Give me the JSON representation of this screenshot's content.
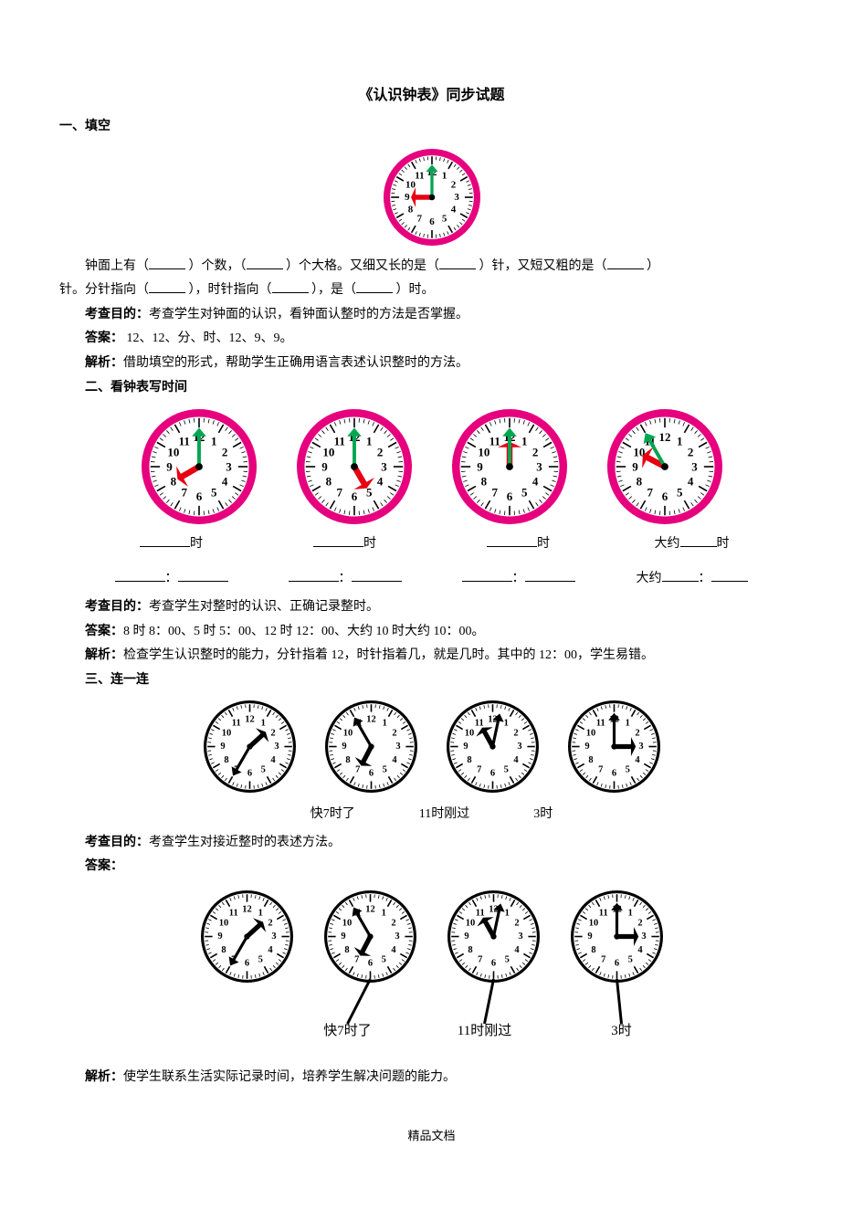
{
  "title": "《认识钟表》同步试题",
  "section1": {
    "heading": "一、填空",
    "clock": {
      "type": "analog-clock",
      "size": 110,
      "rim_color": "#e6007e",
      "face_color": "#ffffff",
      "tick_color": "#000000",
      "hour_hand_color": "#e60012",
      "minute_hand_color": "#00a651",
      "hour": 9,
      "minute": 0,
      "number_fontsize": 10
    },
    "fill_text_a": "钟面上有（",
    "fill_text_b": "）个数，（",
    "fill_text_c": "）个大格。又细又长的是（",
    "fill_text_d": "）针，又短又粗的是（",
    "fill_text_e": "）",
    "fill_line2a": "针。分针指向（",
    "fill_line2b": "），时针指向（",
    "fill_line2c": "），是（",
    "fill_line2d": "）时。",
    "purpose_label": "考查目的：",
    "purpose_text": "考查学生对钟面的认识，看钟面认整时的方法是否掌握。",
    "answer_label": "答案：",
    "answer_text": " 12、12、分、时、12、9、9。",
    "analysis_label": "解析：",
    "analysis_text": "借助填空的形式，帮助学生正确用语言表述认识整时的方法。"
  },
  "section2": {
    "heading": "二、看钟表写时间",
    "clocks": [
      {
        "hour": 8,
        "minute": 0,
        "rim_color": "#e6007e",
        "hour_hand_color": "#e60012",
        "minute_hand_color": "#00a651"
      },
      {
        "hour": 5,
        "minute": 0,
        "rim_color": "#e6007e",
        "hour_hand_color": "#e60012",
        "minute_hand_color": "#00a651"
      },
      {
        "hour": 12,
        "minute": 0,
        "rim_color": "#e6007e",
        "hour_hand_color": "#e60012",
        "minute_hand_color": "#00a651"
      },
      {
        "hour": 9,
        "minute": 55,
        "rim_color": "#e6007e",
        "hour_hand_color": "#e60012",
        "minute_hand_color": "#00a651"
      }
    ],
    "clock_size": 130,
    "row1_suffix": "时",
    "row1_prefix_last": "大约",
    "row2_colon": "：",
    "row2_prefix_last": "大约",
    "purpose_label": "考查目的：",
    "purpose_text": "考查学生对整时的认识、正确记录整时。",
    "answer_label": "答案：",
    "answer_text": "8 时 8：00、5 时 5：00、12 时 12：00、大约 10 时大约 10：00。",
    "analysis_label": "解析：",
    "analysis_text": "检查学生认识整时的能力，分针指着 12，时针指着几，就是几时。其中的 12：00，学生易错。"
  },
  "section3": {
    "heading": "三、连一连",
    "clocks_top": [
      {
        "hour": 1,
        "minute": 35,
        "bw": true
      },
      {
        "hour": 6,
        "minute": 55,
        "bw": true
      },
      {
        "hour": 11,
        "minute": 2,
        "bw": true
      },
      {
        "hour": 3,
        "minute": 0,
        "bw": true
      }
    ],
    "clock_size": 105,
    "labels": [
      "快7时了",
      "11时刚过",
      "3时"
    ],
    "purpose_label": "考查目的：",
    "purpose_text": "考查学生对接近整时的表述方法。",
    "answer_label": "答案：",
    "clocks_bottom": [
      {
        "hour": 1,
        "minute": 35,
        "bw": true,
        "line_to": null
      },
      {
        "hour": 6,
        "minute": 55,
        "bw": true,
        "line_to": 0
      },
      {
        "hour": 11,
        "minute": 2,
        "bw": true,
        "line_to": 1
      },
      {
        "hour": 3,
        "minute": 0,
        "bw": true,
        "line_to": 2
      }
    ],
    "labels_bottom": [
      "快7时了",
      "11时刚过",
      "3时"
    ],
    "analysis_label": "解析：",
    "analysis_text": "使学生联系生活实际记录时间，培养学生解决问题的能力。"
  },
  "footer": "精品文档",
  "style": {
    "bw_rim": "#000000",
    "bw_face": "#ffffff",
    "bw_hand": "#000000"
  }
}
